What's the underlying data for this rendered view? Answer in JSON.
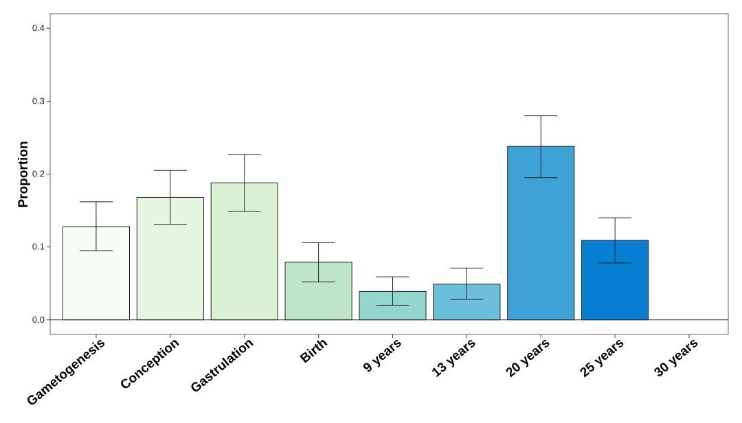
{
  "chart_data": {
    "type": "bar",
    "title": "",
    "xlabel": "",
    "ylabel": "Proportion",
    "ylim": [
      -0.02,
      0.42
    ],
    "yticks": [
      "0.0",
      "0.1",
      "0.2",
      "0.3",
      "0.4"
    ],
    "grid": false,
    "legend": "none",
    "categories": [
      "Gametogenesis",
      "Conception",
      "Gastrulation",
      "Birth",
      "9 years",
      "13 years",
      "20 years",
      "25 years",
      "30 years"
    ],
    "values": [
      0.128,
      0.168,
      0.188,
      0.079,
      0.039,
      0.049,
      0.238,
      0.109,
      0.0
    ],
    "error_low": [
      0.095,
      0.131,
      0.149,
      0.052,
      0.02,
      0.028,
      0.195,
      0.078,
      null
    ],
    "error_high": [
      0.162,
      0.205,
      0.227,
      0.106,
      0.059,
      0.071,
      0.28,
      0.14,
      null
    ],
    "colors": [
      "#f7fcf5",
      "#e5f5e0",
      "#d9f0d3",
      "#bfe5c8",
      "#93d6cd",
      "#6bbfdb",
      "#3fa2d6",
      "#087ed2",
      "#ffffff"
    ]
  }
}
